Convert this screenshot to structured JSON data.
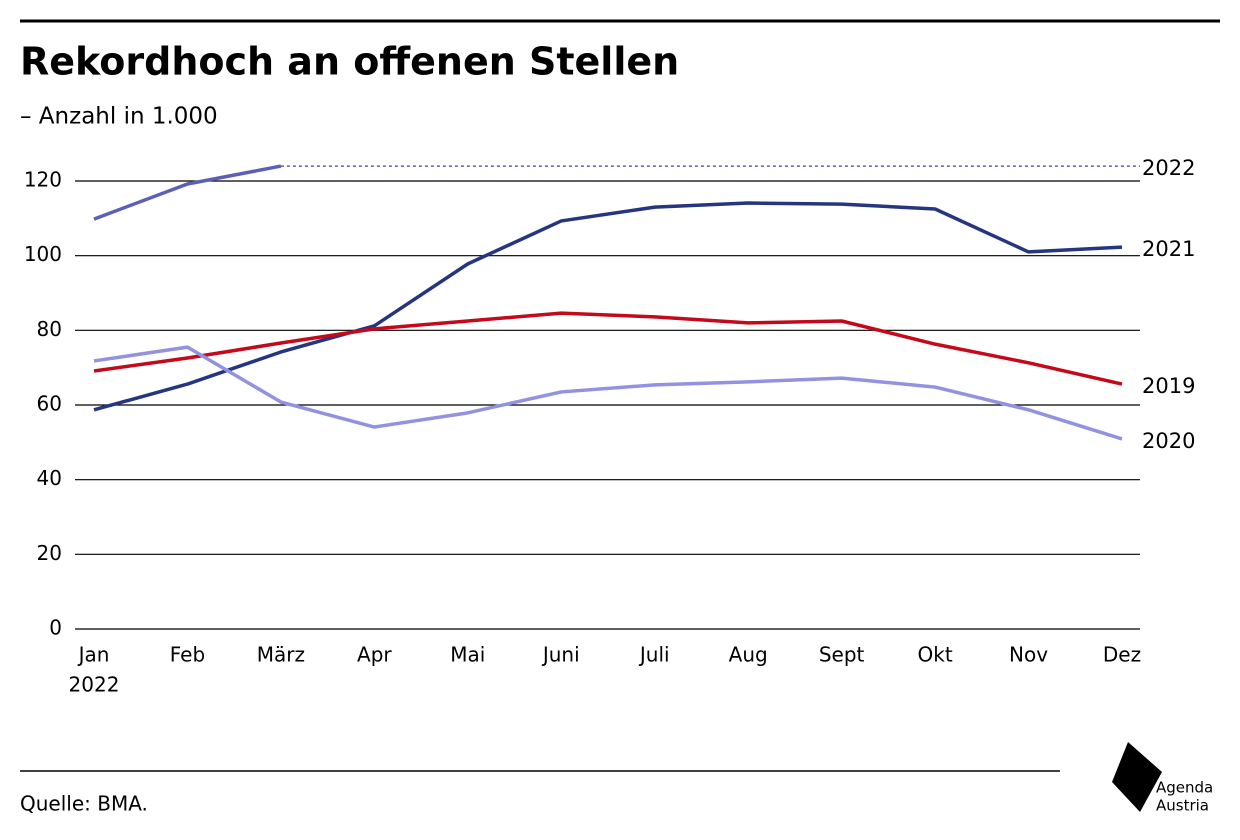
{
  "chart_data": {
    "type": "line",
    "title": "Rekordhoch an offenen Stellen",
    "subtitle": "– Anzahl in 1.000",
    "categories": [
      "Jan",
      "Feb",
      "März",
      "Apr",
      "Mai",
      "Juni",
      "Juli",
      "Aug",
      "Sept",
      "Okt",
      "Nov",
      "Dez"
    ],
    "x_sublabel": "2022",
    "series": [
      {
        "name": "2022",
        "color": "#5b5fb5",
        "values": [
          109.8,
          119.2,
          124,
          null,
          null,
          null,
          null,
          null,
          null,
          null,
          null,
          null
        ]
      },
      {
        "name": "2021",
        "color": "#253580",
        "values": [
          58.7,
          65.6,
          74.2,
          81.2,
          97.8,
          109.3,
          113,
          114.1,
          113.8,
          112.5,
          101,
          102.3
        ]
      },
      {
        "name": "2019",
        "color": "#c40a1a",
        "values": [
          69.1,
          72.6,
          76.6,
          80.4,
          82.5,
          84.6,
          83.6,
          82,
          82.5,
          76.3,
          71.3,
          65.6
        ]
      },
      {
        "name": "2020",
        "color": "#9292e0",
        "values": [
          71.8,
          75.5,
          60.8,
          54.1,
          57.9,
          63.5,
          65.4,
          66.2,
          67.2,
          64.8,
          58.7,
          50.9
        ]
      }
    ],
    "ylim": [
      0,
      120
    ],
    "yticks": [
      0,
      20,
      40,
      60,
      80,
      100,
      120
    ],
    "grid": true,
    "source": "Quelle: BMA.",
    "logo": {
      "line1": "Agenda",
      "line2": "Austria"
    }
  }
}
